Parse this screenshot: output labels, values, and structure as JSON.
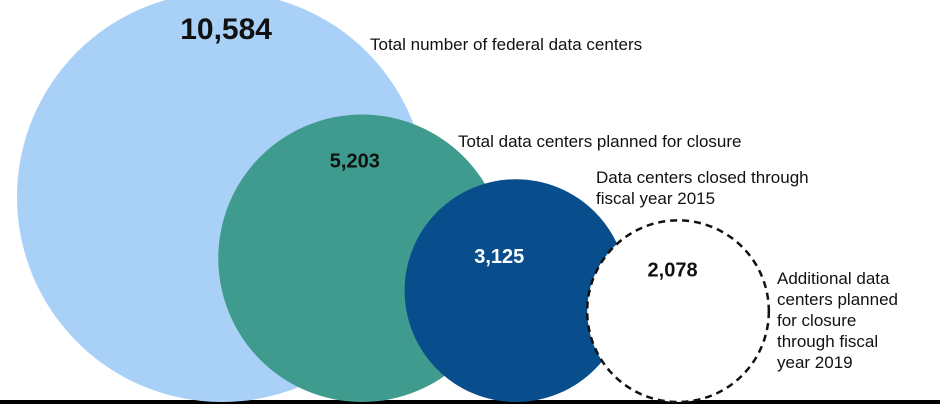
{
  "chart_data": {
    "type": "bubble",
    "title": "",
    "values": [
      10584,
      5203,
      3125,
      2078
    ],
    "value_labels": [
      "10,584",
      "5,203",
      "3,125",
      "2,078"
    ],
    "labels": [
      "Total number of federal data centers",
      "Total data centers planned for closure",
      "Data centers closed through\nfiscal year 2015",
      "Additional data\ncenters planned\nfor closure\nthrough fiscal\nyear 2019"
    ],
    "colors": [
      "#a9d1f7",
      "#3f9b8d",
      "#084d8c",
      "#ffffff"
    ],
    "styles": [
      "solid",
      "solid",
      "solid",
      "dashed"
    ],
    "label_colors": [
      "#111111",
      "#111111",
      "#ffffff",
      "#111111"
    ]
  }
}
